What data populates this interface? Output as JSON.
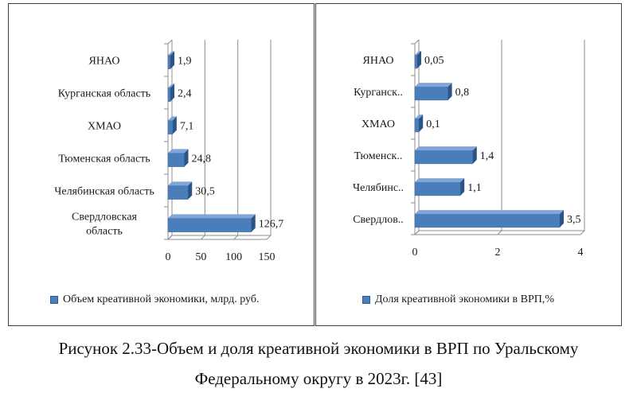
{
  "chart_data": [
    {
      "type": "bar",
      "orientation": "horizontal",
      "categories": [
        "ЯНАО",
        "Курганская область",
        "ХМАО",
        "Тюменская область",
        "Челябинская область",
        "Свердловская область"
      ],
      "category_display": [
        [
          "ЯНАО"
        ],
        [
          "Курганская область"
        ],
        [
          "ХМАО"
        ],
        [
          "Тюменская область"
        ],
        [
          "Челябинская область"
        ],
        [
          "Свердловская",
          "область"
        ]
      ],
      "series": [
        {
          "name": "Объем креативной экономики, млрд. руб.",
          "values": [
            1.9,
            2.4,
            7.1,
            24.8,
            30.5,
            126.7
          ]
        }
      ],
      "value_labels": [
        "1,9",
        "2,4",
        "7,1",
        "24,8",
        "30,5",
        "126,7"
      ],
      "xlim": [
        0,
        150
      ],
      "xticks": [
        "0",
        "50",
        "100",
        "150"
      ],
      "xtick_values": [
        0,
        50,
        100,
        150
      ],
      "grid": true,
      "legend_position": "bottom",
      "bar_style": "3d",
      "colors": {
        "bar_front": "#4a7ebb",
        "bar_top": "#7fa6d6",
        "bar_side": "#2c5585",
        "grid": "#8c8c8c"
      }
    },
    {
      "type": "bar",
      "orientation": "horizontal",
      "categories": [
        "ЯНАО",
        "Курганск..",
        "ХМАО",
        "Тюменск..",
        "Челябинс..",
        "Свердлов.."
      ],
      "category_display": [
        [
          "ЯНАО"
        ],
        [
          "Курганск.."
        ],
        [
          "ХМАО"
        ],
        [
          "Тюменск.."
        ],
        [
          "Челябинс.."
        ],
        [
          "Свердлов.."
        ]
      ],
      "series": [
        {
          "name": "Доля креативной экономики в ВРП,%",
          "values": [
            0.05,
            0.8,
            0.1,
            1.4,
            1.1,
            3.5
          ]
        }
      ],
      "value_labels": [
        "0,05",
        "0,8",
        "0,1",
        "1,4",
        "1,1",
        "3,5"
      ],
      "xlim": [
        0,
        4
      ],
      "xticks": [
        "0",
        "2",
        "4"
      ],
      "xtick_values": [
        0,
        2,
        4
      ],
      "grid": true,
      "legend_position": "bottom",
      "bar_style": "3d",
      "colors": {
        "bar_front": "#4a7ebb",
        "bar_top": "#7fa6d6",
        "bar_side": "#2c5585",
        "grid": "#8c8c8c"
      }
    }
  ],
  "legends": {
    "left": "Объем креативной экономики, млрд. руб.",
    "right": "Доля креативной экономики в ВРП,%"
  },
  "caption": {
    "line1": "Рисунок 2.33-Объем и доля креативной экономики в ВРП по Уральскому",
    "line2": "Федеральному округу в 2023г. [43]"
  }
}
